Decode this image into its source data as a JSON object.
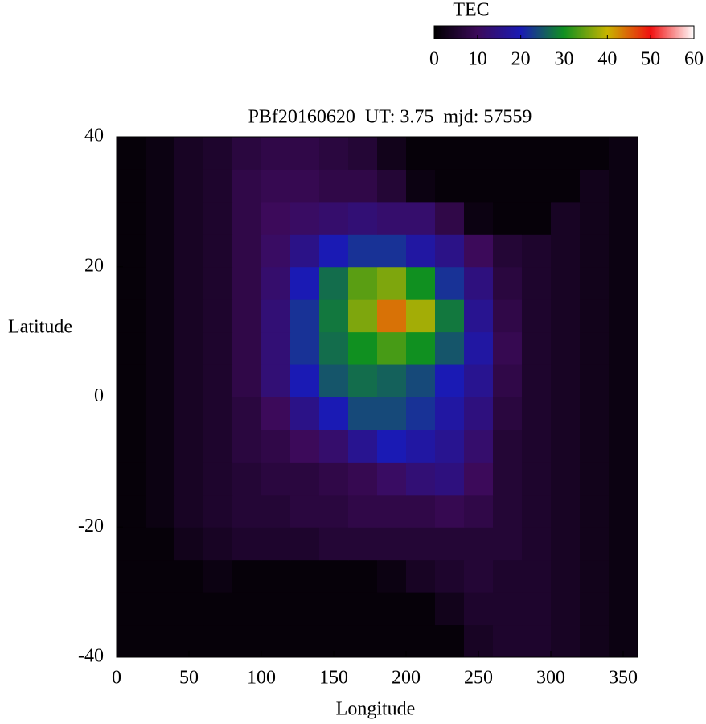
{
  "chart_data": {
    "type": "heatmap",
    "title": "PBf20160620  UT: 3.75  mjd: 57559",
    "x_label": "Longitude",
    "y_label": "Latitude",
    "colorbar_label": "TEC",
    "x": [
      10,
      30,
      50,
      70,
      90,
      110,
      130,
      150,
      170,
      190,
      210,
      230,
      250,
      270,
      290,
      310,
      330,
      350
    ],
    "y": [
      -37.5,
      -32.5,
      -27.5,
      -22.5,
      -17.5,
      -12.5,
      -7.5,
      -2.5,
      2.5,
      7.5,
      12.5,
      17.5,
      22.5,
      27.5,
      32.5,
      37.5
    ],
    "values": [
      [
        1,
        1,
        1,
        1,
        1,
        1,
        1,
        1,
        1,
        1,
        1,
        1,
        4,
        5,
        5,
        4,
        3,
        2
      ],
      [
        1,
        1,
        1,
        1,
        1,
        1,
        1,
        1,
        1,
        1,
        1,
        3,
        5,
        5,
        5,
        4,
        3,
        2
      ],
      [
        1,
        1,
        1,
        2,
        1,
        1,
        1,
        1,
        1,
        2,
        4,
        5,
        6,
        5,
        5,
        4,
        3,
        2
      ],
      [
        1,
        1,
        3,
        4,
        5,
        5,
        5,
        6,
        6,
        6,
        6,
        6,
        6,
        6,
        5,
        4,
        3,
        2
      ],
      [
        1,
        2,
        4,
        5,
        6,
        6,
        7,
        7,
        8,
        8,
        8,
        9,
        8,
        6,
        5,
        4,
        3,
        2
      ],
      [
        1,
        2,
        4,
        5,
        6,
        7,
        7,
        8,
        9,
        11,
        13,
        14,
        10,
        6,
        5,
        4,
        3,
        2
      ],
      [
        1,
        2,
        4,
        5,
        7,
        8,
        10,
        12,
        16,
        20,
        18,
        16,
        12,
        6,
        5,
        4,
        3,
        2
      ],
      [
        1,
        2,
        4,
        5,
        7,
        10,
        15,
        20,
        24,
        24,
        22,
        18,
        14,
        7,
        5,
        4,
        3,
        2
      ],
      [
        1,
        2,
        4,
        5,
        8,
        13,
        20,
        25,
        27,
        26,
        24,
        20,
        16,
        8,
        5,
        4,
        3,
        2
      ],
      [
        1,
        2,
        4,
        5,
        8,
        13,
        22,
        27,
        30,
        33,
        30,
        25,
        18,
        9,
        5,
        4,
        3,
        2
      ],
      [
        1,
        2,
        4,
        5,
        8,
        13,
        22,
        28,
        36,
        44,
        38,
        28,
        16,
        8,
        5,
        4,
        3,
        2
      ],
      [
        1,
        2,
        4,
        5,
        8,
        12,
        20,
        27,
        34,
        36,
        30,
        22,
        14,
        7,
        5,
        4,
        3,
        2
      ],
      [
        1,
        2,
        4,
        5,
        8,
        11,
        15,
        20,
        22,
        22,
        18,
        15,
        10,
        6,
        5,
        4,
        3,
        2
      ],
      [
        1,
        2,
        4,
        5,
        8,
        10,
        11,
        12,
        13,
        12,
        12,
        8,
        2,
        1,
        1,
        4,
        3,
        2
      ],
      [
        1,
        2,
        4,
        5,
        8,
        9,
        9,
        8,
        8,
        6,
        2,
        1,
        1,
        1,
        1,
        1,
        3,
        2
      ],
      [
        1,
        2,
        4,
        5,
        7,
        8,
        8,
        7,
        6,
        3,
        1,
        1,
        1,
        1,
        1,
        1,
        1,
        2
      ]
    ],
    "xlim": [
      0,
      360
    ],
    "xticks": [
      0,
      50,
      100,
      150,
      200,
      250,
      300,
      350
    ],
    "ylim": [
      -40,
      40
    ],
    "yticks": [
      -40,
      -20,
      0,
      20,
      40
    ],
    "zlim": [
      0,
      60
    ],
    "zticks": [
      0,
      10,
      20,
      30,
      40,
      50,
      60
    ],
    "palette": [
      "#000000",
      "#3c0a5a",
      "#1a1ab4",
      "#109020",
      "#c8b400",
      "#f01010",
      "#ffffff"
    ]
  }
}
